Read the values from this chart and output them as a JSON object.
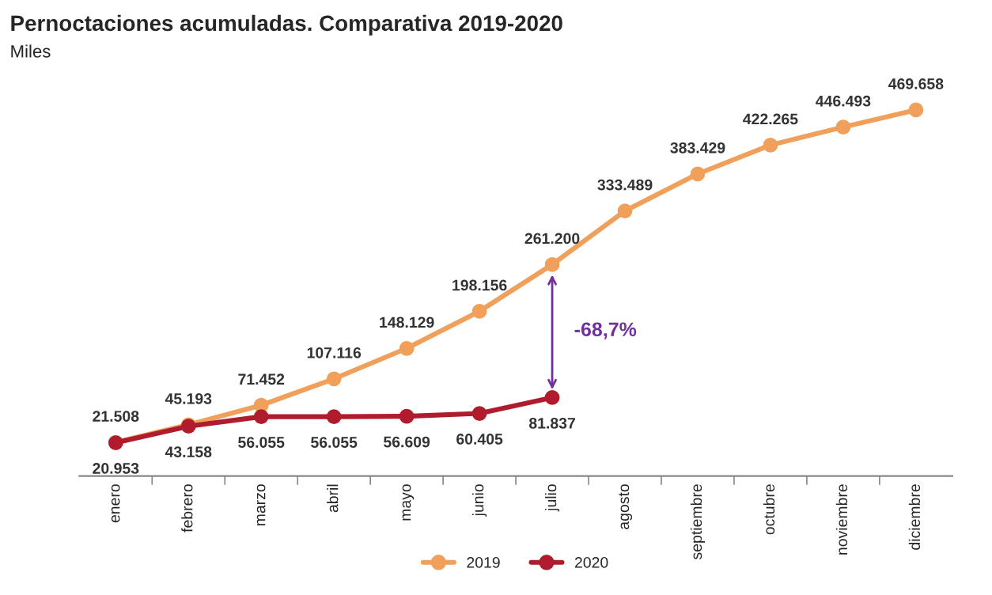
{
  "chart_data": {
    "type": "line",
    "title": "Pernoctaciones acumuladas. Comparativa 2019-2020",
    "subtitle": "Miles",
    "categories": [
      "enero",
      "febrero",
      "marzo",
      "abril",
      "mayo",
      "junio",
      "julio",
      "agosto",
      "septiembre",
      "octubre",
      "noviembre",
      "diciembre"
    ],
    "series": [
      {
        "name": "2019",
        "color": "#f0a05a",
        "values": [
          21508,
          45193,
          71452,
          107116,
          148129,
          198156,
          261200,
          333489,
          383429,
          422265,
          446493,
          469658
        ],
        "value_labels": [
          "21.508",
          "45.193",
          "71.452",
          "107.116",
          "148.129",
          "198.156",
          "261.200",
          "333.489",
          "383.429",
          "422.265",
          "446.493",
          "469.658"
        ]
      },
      {
        "name": "2020",
        "color": "#b01c2e",
        "values": [
          20953,
          43158,
          56055,
          56055,
          56609,
          60405,
          81837,
          null,
          null,
          null,
          null,
          null
        ],
        "value_labels": [
          "20.953",
          "43.158",
          "56.055",
          "56.055",
          "56.609",
          "60.405",
          "81.837",
          null,
          null,
          null,
          null,
          null
        ]
      }
    ],
    "annotations": [
      "-68,7%"
    ],
    "marker": "circle",
    "line_style": "solid",
    "grid": false,
    "legend": "bottom"
  }
}
